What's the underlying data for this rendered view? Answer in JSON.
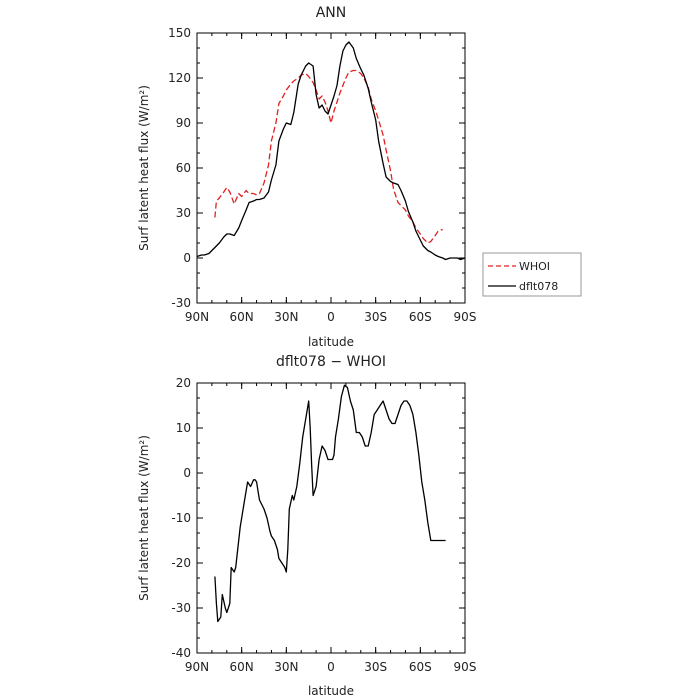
{
  "chart_data": [
    {
      "type": "line",
      "title": "ANN",
      "xlabel": "latitude",
      "ylabel": "Surf latent heat flux (W/m²)",
      "xlim": [
        -90,
        90
      ],
      "ylim": [
        -30,
        150
      ],
      "x_ticks": [
        "90N",
        "60N",
        "30N",
        "0",
        "30S",
        "60S",
        "90S"
      ],
      "y_ticks": [
        "-30",
        "0",
        "30",
        "60",
        "90",
        "120",
        "150"
      ],
      "legend_position": "right",
      "series": [
        {
          "name": "WHOI",
          "color": "#e02020",
          "style": "dashed",
          "x": [
            -78,
            -77,
            -75,
            -72,
            -70,
            -68,
            -65,
            -62,
            -60,
            -57,
            -55,
            -52,
            -50,
            -48,
            -45,
            -42,
            -40,
            -37,
            -35,
            -32,
            -30,
            -27,
            -25,
            -22,
            -20,
            -17,
            -15,
            -12,
            -10,
            -8,
            -6,
            -4,
            -2,
            0,
            2,
            4,
            6,
            8,
            10,
            12,
            15,
            17,
            20,
            22,
            25,
            27,
            30,
            32,
            35,
            37,
            40,
            42,
            45,
            47,
            50,
            52,
            55,
            57,
            60,
            62,
            65,
            67,
            70,
            72,
            75
          ],
          "y": [
            27,
            38,
            40,
            44,
            47,
            44,
            36,
            43,
            41,
            45,
            43,
            43,
            42,
            43,
            50,
            62,
            78,
            90,
            103,
            108,
            112,
            116,
            118,
            120,
            122,
            123,
            121,
            117,
            112,
            106,
            108,
            104,
            98,
            90,
            98,
            104,
            110,
            115,
            120,
            124,
            125,
            125,
            123,
            120,
            114,
            106,
            98,
            92,
            82,
            72,
            58,
            46,
            37,
            35,
            32,
            28,
            24,
            20,
            16,
            13,
            10,
            11,
            15,
            18,
            19
          ]
        },
        {
          "name": "dflt078",
          "color": "#000000",
          "style": "solid",
          "x": [
            -90,
            -87,
            -85,
            -82,
            -80,
            -78,
            -75,
            -72,
            -70,
            -68,
            -65,
            -62,
            -60,
            -57,
            -55,
            -52,
            -50,
            -48,
            -45,
            -42,
            -40,
            -37,
            -35,
            -32,
            -30,
            -27,
            -25,
            -22,
            -20,
            -17,
            -15,
            -12,
            -10,
            -8,
            -6,
            -4,
            -2,
            0,
            2,
            4,
            6,
            8,
            10,
            12,
            15,
            17,
            20,
            22,
            25,
            27,
            30,
            32,
            35,
            37,
            40,
            42,
            45,
            47,
            50,
            52,
            55,
            57,
            60,
            62,
            65,
            67,
            70,
            72,
            75,
            77,
            80,
            82,
            85,
            87,
            90
          ],
          "y": [
            1,
            2,
            2,
            3,
            5,
            7,
            10,
            14,
            16,
            16,
            15,
            20,
            25,
            32,
            37,
            38,
            39,
            39,
            40,
            44,
            52,
            62,
            78,
            86,
            90,
            89,
            97,
            116,
            122,
            128,
            130,
            128,
            109,
            100,
            102,
            98,
            96,
            102,
            108,
            115,
            128,
            138,
            142,
            144,
            140,
            133,
            126,
            122,
            113,
            104,
            92,
            78,
            63,
            54,
            51,
            50,
            49,
            45,
            38,
            31,
            24,
            18,
            12,
            8,
            5,
            4,
            2,
            1,
            0,
            -1,
            0,
            0,
            0,
            -1,
            0
          ]
        }
      ]
    },
    {
      "type": "line",
      "title": "dflt078 − WHOI",
      "xlabel": "latitude",
      "ylabel": "Surf latent heat flux (W/m²)",
      "xlim": [
        -90,
        90
      ],
      "ylim": [
        -40,
        20
      ],
      "x_ticks": [
        "90N",
        "60N",
        "30N",
        "0",
        "30S",
        "60S",
        "90S"
      ],
      "y_ticks": [
        "-40",
        "-30",
        "-20",
        "-10",
        "0",
        "10",
        "20"
      ],
      "series": [
        {
          "color": "#000000",
          "style": "solid",
          "x": [
            -78,
            -77,
            -76,
            -74,
            -73,
            -71,
            -70,
            -68,
            -67,
            -65,
            -64,
            -62,
            -61,
            -58,
            -56,
            -54,
            -52,
            -51,
            -50,
            -49,
            -48,
            -45,
            -43,
            -41,
            -40,
            -38,
            -36,
            -35,
            -33,
            -31,
            -30,
            -29,
            -28,
            -26,
            -25,
            -23,
            -21,
            -19,
            -17,
            -15,
            -14,
            -13,
            -12,
            -10,
            -8,
            -6,
            -4,
            -2,
            -1,
            0,
            1,
            2,
            3,
            5,
            7,
            9,
            11,
            13,
            15,
            17,
            19,
            21,
            23,
            25,
            27,
            29,
            31,
            33,
            35,
            37,
            39,
            41,
            43,
            45,
            47,
            49,
            51,
            53,
            55,
            57,
            59,
            61,
            63,
            65,
            67,
            69,
            71,
            73,
            75,
            77
          ],
          "y": [
            -23,
            -29,
            -33,
            -32,
            -27,
            -30,
            -31,
            -29,
            -21,
            -22,
            -21,
            -15,
            -12,
            -6,
            -2,
            -3,
            -1.5,
            -1.5,
            -2,
            -4,
            -6,
            -8,
            -10,
            -13,
            -14,
            -15,
            -17,
            -19,
            -20,
            -21,
            -22,
            -17,
            -8,
            -5,
            -6,
            -3,
            2,
            8,
            12,
            16,
            10,
            2,
            -5,
            -3,
            3,
            6,
            5,
            3,
            3,
            3,
            3,
            4,
            8,
            12,
            17,
            19.5,
            19,
            16,
            14,
            9,
            9,
            8,
            6,
            6,
            9,
            13,
            14,
            15,
            16,
            14,
            12,
            11,
            11,
            13,
            15,
            16,
            16,
            15,
            13,
            9,
            4,
            -2,
            -6,
            -11,
            -15,
            -15,
            -15,
            -15,
            -15,
            -15
          ]
        }
      ]
    }
  ]
}
